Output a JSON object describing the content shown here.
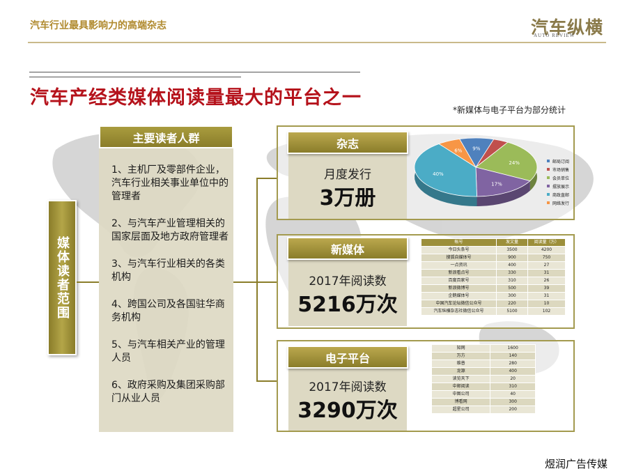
{
  "header": {
    "tagline": "汽车行业最具影响力的高端杂志",
    "logo_cn": "汽车纵横",
    "logo_en": "AUTO REVIEW"
  },
  "title": "汽车产经类媒体阅读量最大的平台之一",
  "footnote": "*新媒体与电子平台为部分统计",
  "scope_label": "媒体读者范围",
  "readers": {
    "header": "主要读者人群",
    "items": [
      "1、主机厂及零部件企业，汽车行业相关事业单位中的管理者",
      "2、与汽车产业管理相关的国家层面及地方政府管理者",
      "3、与汽车行业相关的各类机构",
      "4、跨国公司及各国驻华商务机构",
      "5、与汽车相关产业的管理人员",
      "6、政府采购及集团采购部门从业人员"
    ]
  },
  "magazine": {
    "header": "杂志",
    "sub": "月度发行",
    "big": "3万册",
    "chart_data": {
      "type": "pie",
      "values": [
        9,
        4,
        24,
        17,
        40,
        6
      ],
      "labels": [
        "9%",
        "4%",
        "24%",
        "17%",
        "40%",
        "6%"
      ],
      "colors": [
        "#4f81bd",
        "#c0504d",
        "#9bbb59",
        "#8064a2",
        "#4bacc6",
        "#f79646"
      ],
      "legend": [
        "邮局订阅",
        "市场销售",
        "会员单位",
        "摆放展示",
        "商政直邮",
        "网络发行"
      ],
      "legend_position": "right"
    }
  },
  "newmedia": {
    "header": "新媒体",
    "sub": "2017年阅读数",
    "big": "5216万次",
    "table": {
      "columns": [
        "帐号",
        "发文量",
        "阅读量（万）"
      ],
      "rows": [
        [
          "今日头条号",
          "3500",
          "4200"
        ],
        [
          "搜狐自媒体号",
          "900",
          "750"
        ],
        [
          "一点资讯",
          "400",
          "27"
        ],
        [
          "新浪看点号",
          "330",
          "31"
        ],
        [
          "百度百家号",
          "310",
          "26"
        ],
        [
          "新浪微博号",
          "500",
          "39"
        ],
        [
          "企鹅媒体号",
          "300",
          "31"
        ],
        [
          "中国汽车论坛微信公众号",
          "220",
          "10"
        ],
        [
          "汽车纵横杂志社微信公众号",
          "5100",
          "102"
        ]
      ]
    }
  },
  "eplatform": {
    "header": "电子平台",
    "sub": "2017年阅读数",
    "big": "3290万次",
    "table": {
      "rows": [
        [
          "知网",
          "1600"
        ],
        [
          "万方",
          "140"
        ],
        [
          "维普",
          "280"
        ],
        [
          "龙源",
          "400"
        ],
        [
          "读览天下",
          "20"
        ],
        [
          "中邮阅读",
          "310"
        ],
        [
          "中图公司",
          "40"
        ],
        [
          "博看网",
          "300"
        ],
        [
          "超星公司",
          "200"
        ]
      ]
    }
  },
  "footer": "煜润广告传媒"
}
